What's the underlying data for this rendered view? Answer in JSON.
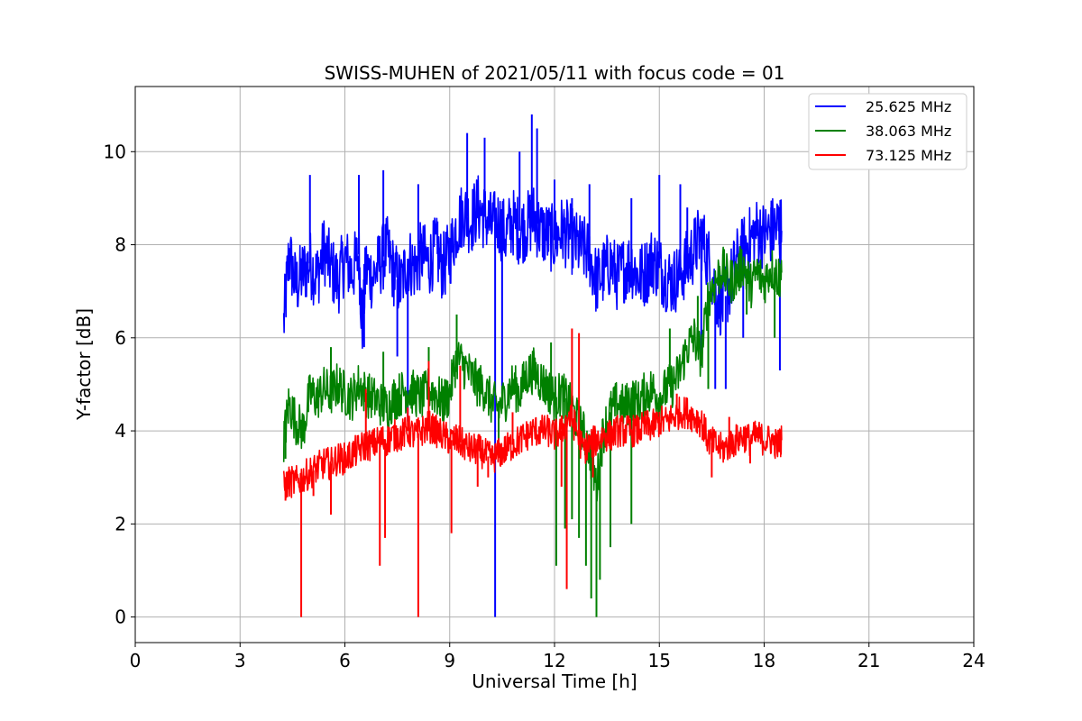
{
  "chart_data": {
    "type": "line",
    "title": "SWISS-MUHEN of 2021/05/11 with focus code = 01",
    "xlabel": "Universal Time [h]",
    "ylabel": "Y-factor [dB]",
    "xlim": [
      0,
      24
    ],
    "ylim": [
      -0.55,
      11.4
    ],
    "xticks": [
      0,
      3,
      6,
      9,
      12,
      15,
      18,
      21,
      24
    ],
    "xtick_labels": [
      "0",
      "3",
      "6",
      "9",
      "12",
      "15",
      "18",
      "21",
      "24"
    ],
    "yticks": [
      0,
      2,
      4,
      6,
      8,
      10
    ],
    "ytick_labels": [
      "0",
      "2",
      "4",
      "6",
      "8",
      "10"
    ],
    "grid": true,
    "legend_position": "top-right",
    "series": [
      {
        "name": "25.625 MHz",
        "color": "#0000ff",
        "points": [
          [
            4.25,
            6.3
          ],
          [
            4.4,
            7.8
          ],
          [
            4.6,
            7.1
          ],
          [
            4.8,
            7.4
          ],
          [
            5.0,
            7.6
          ],
          [
            5.2,
            7.3
          ],
          [
            5.4,
            7.9
          ],
          [
            5.6,
            7.5
          ],
          [
            5.8,
            7.2
          ],
          [
            6.0,
            7.7
          ],
          [
            6.2,
            7.4
          ],
          [
            6.4,
            7.8
          ],
          [
            6.5,
            6.2
          ],
          [
            6.6,
            7.5
          ],
          [
            6.8,
            7.3
          ],
          [
            7.0,
            7.6
          ],
          [
            7.2,
            7.9
          ],
          [
            7.4,
            7.4
          ],
          [
            7.6,
            7.1
          ],
          [
            7.8,
            7.7
          ],
          [
            8.0,
            7.5
          ],
          [
            8.2,
            7.8
          ],
          [
            8.4,
            7.6
          ],
          [
            8.6,
            7.9
          ],
          [
            8.8,
            7.5
          ],
          [
            9.0,
            7.8
          ],
          [
            9.2,
            8.4
          ],
          [
            9.4,
            8.7
          ],
          [
            9.6,
            8.5
          ],
          [
            9.8,
            8.8
          ],
          [
            10.0,
            8.6
          ],
          [
            10.2,
            8.4
          ],
          [
            10.4,
            8.5
          ],
          [
            10.6,
            8.2
          ],
          [
            10.8,
            8.5
          ],
          [
            11.0,
            8.3
          ],
          [
            11.2,
            8.4
          ],
          [
            11.4,
            8.6
          ],
          [
            11.6,
            8.3
          ],
          [
            11.8,
            8.2
          ],
          [
            12.0,
            8.1
          ],
          [
            12.2,
            8.3
          ],
          [
            12.4,
            8.2
          ],
          [
            12.6,
            8.0
          ],
          [
            12.8,
            7.9
          ],
          [
            13.0,
            7.8
          ],
          [
            13.2,
            7.2
          ],
          [
            13.4,
            7.4
          ],
          [
            13.6,
            7.6
          ],
          [
            13.8,
            7.3
          ],
          [
            14.0,
            7.5
          ],
          [
            14.2,
            7.6
          ],
          [
            14.4,
            7.3
          ],
          [
            14.6,
            7.4
          ],
          [
            14.8,
            7.7
          ],
          [
            15.0,
            7.5
          ],
          [
            15.2,
            7.3
          ],
          [
            15.4,
            7.2
          ],
          [
            15.6,
            7.4
          ],
          [
            15.8,
            7.6
          ],
          [
            16.0,
            7.9
          ],
          [
            16.2,
            8.2
          ],
          [
            16.4,
            7.7
          ],
          [
            16.6,
            7.0
          ],
          [
            16.8,
            6.7
          ],
          [
            17.0,
            7.1
          ],
          [
            17.2,
            7.6
          ],
          [
            17.4,
            7.9
          ],
          [
            17.6,
            8.1
          ],
          [
            17.8,
            8.3
          ],
          [
            18.0,
            8.2
          ],
          [
            18.2,
            8.3
          ],
          [
            18.4,
            8.4
          ],
          [
            18.5,
            8.3
          ]
        ],
        "spikes": [
          [
            5.0,
            9.5
          ],
          [
            6.4,
            9.5
          ],
          [
            6.55,
            5.8
          ],
          [
            7.1,
            9.6
          ],
          [
            7.5,
            5.6
          ],
          [
            7.8,
            4.2
          ],
          [
            8.1,
            9.3
          ],
          [
            8.65,
            8.5
          ],
          [
            9.5,
            10.4
          ],
          [
            10.0,
            10.3
          ],
          [
            10.3,
            0.0
          ],
          [
            10.5,
            4.8
          ],
          [
            11.0,
            10.0
          ],
          [
            11.35,
            10.8
          ],
          [
            11.5,
            10.5
          ],
          [
            12.0,
            9.4
          ],
          [
            12.5,
            9.0
          ],
          [
            13.0,
            9.3
          ],
          [
            14.2,
            9.0
          ],
          [
            15.0,
            9.5
          ],
          [
            15.6,
            9.3
          ],
          [
            15.8,
            8.8
          ],
          [
            16.2,
            5.4
          ],
          [
            16.6,
            4.9
          ],
          [
            16.9,
            4.9
          ],
          [
            17.4,
            6.0
          ],
          [
            18.2,
            8.8
          ],
          [
            18.45,
            5.3
          ]
        ]
      },
      {
        "name": "38.063 MHz",
        "color": "#008000",
        "points": [
          [
            4.25,
            3.8
          ],
          [
            4.4,
            4.6
          ],
          [
            4.6,
            4.2
          ],
          [
            4.8,
            4.0
          ],
          [
            5.0,
            4.8
          ],
          [
            5.2,
            4.7
          ],
          [
            5.4,
            4.9
          ],
          [
            5.6,
            4.8
          ],
          [
            5.8,
            5.0
          ],
          [
            6.0,
            4.8
          ],
          [
            6.2,
            4.7
          ],
          [
            6.4,
            5.0
          ],
          [
            6.6,
            4.8
          ],
          [
            6.8,
            4.7
          ],
          [
            7.0,
            4.6
          ],
          [
            7.2,
            4.5
          ],
          [
            7.4,
            4.7
          ],
          [
            7.6,
            4.8
          ],
          [
            7.8,
            4.9
          ],
          [
            8.0,
            4.8
          ],
          [
            8.2,
            4.7
          ],
          [
            8.4,
            4.9
          ],
          [
            8.6,
            4.8
          ],
          [
            8.8,
            4.6
          ],
          [
            9.0,
            4.8
          ],
          [
            9.2,
            5.6
          ],
          [
            9.4,
            5.4
          ],
          [
            9.6,
            5.2
          ],
          [
            9.8,
            5.0
          ],
          [
            10.0,
            4.9
          ],
          [
            10.2,
            4.6
          ],
          [
            10.4,
            4.5
          ],
          [
            10.6,
            4.7
          ],
          [
            10.8,
            5.0
          ],
          [
            11.0,
            4.8
          ],
          [
            11.2,
            5.2
          ],
          [
            11.4,
            5.3
          ],
          [
            11.6,
            5.1
          ],
          [
            11.8,
            4.9
          ],
          [
            12.0,
            4.7
          ],
          [
            12.2,
            4.8
          ],
          [
            12.4,
            4.6
          ],
          [
            12.6,
            4.3
          ],
          [
            12.8,
            4.0
          ],
          [
            13.0,
            3.6
          ],
          [
            13.2,
            2.8
          ],
          [
            13.4,
            4.0
          ],
          [
            13.6,
            4.4
          ],
          [
            13.8,
            4.6
          ],
          [
            14.0,
            4.5
          ],
          [
            14.2,
            4.7
          ],
          [
            14.4,
            4.6
          ],
          [
            14.6,
            4.8
          ],
          [
            14.8,
            4.9
          ],
          [
            15.0,
            4.7
          ],
          [
            15.2,
            4.9
          ],
          [
            15.4,
            5.0
          ],
          [
            15.6,
            5.3
          ],
          [
            15.8,
            5.8
          ],
          [
            16.0,
            6.0
          ],
          [
            16.2,
            5.6
          ],
          [
            16.4,
            6.9
          ],
          [
            16.6,
            7.2
          ],
          [
            16.8,
            7.5
          ],
          [
            17.0,
            7.2
          ],
          [
            17.2,
            7.3
          ],
          [
            17.4,
            7.6
          ],
          [
            17.6,
            7.1
          ],
          [
            17.8,
            7.4
          ],
          [
            18.0,
            7.2
          ],
          [
            18.2,
            7.5
          ],
          [
            18.4,
            7.3
          ],
          [
            18.5,
            7.4
          ]
        ],
        "spikes": [
          [
            4.3,
            3.4
          ],
          [
            5.6,
            5.8
          ],
          [
            7.1,
            5.7
          ],
          [
            8.4,
            5.8
          ],
          [
            9.2,
            6.5
          ],
          [
            10.4,
            3.6
          ],
          [
            11.9,
            5.9
          ],
          [
            12.05,
            1.1
          ],
          [
            12.3,
            1.9
          ],
          [
            12.5,
            2.1
          ],
          [
            12.7,
            1.7
          ],
          [
            12.9,
            1.1
          ],
          [
            13.05,
            0.4
          ],
          [
            13.2,
            0.0
          ],
          [
            13.3,
            0.8
          ],
          [
            13.6,
            1.5
          ],
          [
            14.2,
            2.0
          ],
          [
            15.3,
            6.2
          ],
          [
            16.1,
            6.9
          ],
          [
            16.4,
            4.9
          ],
          [
            17.5,
            6.5
          ],
          [
            18.3,
            6.0
          ]
        ]
      },
      {
        "name": "73.125 MHz",
        "color": "#ff0000",
        "points": [
          [
            4.25,
            2.8
          ],
          [
            4.4,
            2.9
          ],
          [
            4.6,
            2.9
          ],
          [
            4.8,
            3.0
          ],
          [
            5.0,
            3.1
          ],
          [
            5.2,
            3.2
          ],
          [
            5.4,
            3.3
          ],
          [
            5.6,
            3.3
          ],
          [
            5.8,
            3.4
          ],
          [
            6.0,
            3.4
          ],
          [
            6.2,
            3.5
          ],
          [
            6.4,
            3.6
          ],
          [
            6.6,
            3.7
          ],
          [
            6.8,
            3.7
          ],
          [
            7.0,
            3.8
          ],
          [
            7.2,
            3.8
          ],
          [
            7.4,
            3.9
          ],
          [
            7.6,
            3.9
          ],
          [
            7.8,
            4.0
          ],
          [
            8.0,
            3.9
          ],
          [
            8.2,
            4.0
          ],
          [
            8.4,
            4.1
          ],
          [
            8.6,
            4.0
          ],
          [
            8.8,
            3.9
          ],
          [
            9.0,
            3.8
          ],
          [
            9.2,
            3.8
          ],
          [
            9.4,
            3.7
          ],
          [
            9.6,
            3.6
          ],
          [
            9.8,
            3.6
          ],
          [
            10.0,
            3.5
          ],
          [
            10.2,
            3.4
          ],
          [
            10.4,
            3.5
          ],
          [
            10.6,
            3.6
          ],
          [
            10.8,
            3.7
          ],
          [
            11.0,
            3.8
          ],
          [
            11.2,
            3.9
          ],
          [
            11.4,
            4.0
          ],
          [
            11.6,
            4.0
          ],
          [
            11.8,
            4.0
          ],
          [
            12.0,
            3.9
          ],
          [
            12.2,
            4.0
          ],
          [
            12.4,
            4.3
          ],
          [
            12.6,
            4.1
          ],
          [
            12.8,
            3.6
          ],
          [
            13.0,
            3.7
          ],
          [
            13.2,
            3.8
          ],
          [
            13.4,
            3.9
          ],
          [
            13.6,
            3.9
          ],
          [
            13.8,
            4.0
          ],
          [
            14.0,
            4.0
          ],
          [
            14.2,
            4.0
          ],
          [
            14.4,
            4.0
          ],
          [
            14.6,
            4.1
          ],
          [
            14.8,
            4.1
          ],
          [
            15.0,
            4.2
          ],
          [
            15.2,
            4.2
          ],
          [
            15.4,
            4.3
          ],
          [
            15.6,
            4.4
          ],
          [
            15.8,
            4.4
          ],
          [
            16.0,
            4.3
          ],
          [
            16.2,
            4.2
          ],
          [
            16.4,
            3.8
          ],
          [
            16.6,
            3.7
          ],
          [
            16.8,
            3.6
          ],
          [
            17.0,
            3.7
          ],
          [
            17.2,
            3.8
          ],
          [
            17.4,
            3.9
          ],
          [
            17.6,
            3.8
          ],
          [
            17.8,
            3.9
          ],
          [
            18.0,
            3.8
          ],
          [
            18.2,
            3.8
          ],
          [
            18.4,
            3.7
          ],
          [
            18.5,
            3.8
          ]
        ],
        "spikes": [
          [
            4.3,
            2.5
          ],
          [
            4.75,
            0.0
          ],
          [
            5.1,
            2.6
          ],
          [
            5.6,
            2.2
          ],
          [
            6.6,
            4.9
          ],
          [
            7.0,
            1.1
          ],
          [
            7.15,
            1.7
          ],
          [
            7.8,
            4.5
          ],
          [
            8.1,
            0.0
          ],
          [
            8.4,
            5.5
          ],
          [
            9.05,
            1.8
          ],
          [
            9.3,
            5.4
          ],
          [
            9.8,
            2.8
          ],
          [
            10.1,
            3.0
          ],
          [
            10.8,
            4.4
          ],
          [
            12.2,
            2.8
          ],
          [
            12.35,
            0.6
          ],
          [
            12.5,
            6.2
          ],
          [
            12.7,
            6.1
          ],
          [
            13.1,
            3.0
          ],
          [
            15.5,
            4.8
          ],
          [
            16.5,
            3.0
          ],
          [
            17.0,
            4.3
          ],
          [
            17.6,
            3.3
          ]
        ]
      }
    ]
  }
}
